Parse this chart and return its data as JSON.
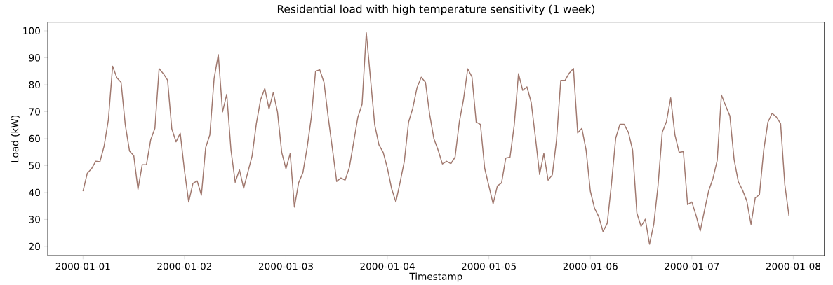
{
  "chart_data": {
    "type": "line",
    "title": "Residential load with high temperature sensitivity (1 week)",
    "xlabel": "Timestamp",
    "ylabel": "Load (kW)",
    "xlim": [
      "1999-12-31T15:39",
      "2000-01-08T07:21"
    ],
    "xticks": [
      "2000-01-01",
      "2000-01-02",
      "2000-01-03",
      "2000-01-04",
      "2000-01-05",
      "2000-01-06",
      "2000-01-07",
      "2000-01-08"
    ],
    "ylim": [
      16.6,
      103.2
    ],
    "yticks": [
      20,
      30,
      40,
      50,
      60,
      70,
      80,
      90,
      100
    ],
    "grid": false,
    "x": [
      "2000-01-01T00:00",
      "2000-01-01T01:00",
      "2000-01-01T02:00",
      "2000-01-01T03:00",
      "2000-01-01T04:00",
      "2000-01-01T05:00",
      "2000-01-01T06:00",
      "2000-01-01T07:00",
      "2000-01-01T08:00",
      "2000-01-01T09:00",
      "2000-01-01T10:00",
      "2000-01-01T11:00",
      "2000-01-01T12:00",
      "2000-01-01T13:00",
      "2000-01-01T14:00",
      "2000-01-01T15:00",
      "2000-01-01T16:00",
      "2000-01-01T17:00",
      "2000-01-01T18:00",
      "2000-01-01T19:00",
      "2000-01-01T20:00",
      "2000-01-01T21:00",
      "2000-01-01T22:00",
      "2000-01-01T23:00",
      "2000-01-02T00:00",
      "2000-01-02T01:00",
      "2000-01-02T02:00",
      "2000-01-02T03:00",
      "2000-01-02T04:00",
      "2000-01-02T05:00",
      "2000-01-02T06:00",
      "2000-01-02T07:00",
      "2000-01-02T08:00",
      "2000-01-02T09:00",
      "2000-01-02T10:00",
      "2000-01-02T11:00",
      "2000-01-02T12:00",
      "2000-01-02T13:00",
      "2000-01-02T14:00",
      "2000-01-02T15:00",
      "2000-01-02T16:00",
      "2000-01-02T17:00",
      "2000-01-02T18:00",
      "2000-01-02T19:00",
      "2000-01-02T20:00",
      "2000-01-02T21:00",
      "2000-01-02T22:00",
      "2000-01-02T23:00",
      "2000-01-03T00:00",
      "2000-01-03T01:00",
      "2000-01-03T02:00",
      "2000-01-03T03:00",
      "2000-01-03T04:00",
      "2000-01-03T05:00",
      "2000-01-03T06:00",
      "2000-01-03T07:00",
      "2000-01-03T08:00",
      "2000-01-03T09:00",
      "2000-01-03T10:00",
      "2000-01-03T11:00",
      "2000-01-03T12:00",
      "2000-01-03T13:00",
      "2000-01-03T14:00",
      "2000-01-03T15:00",
      "2000-01-03T16:00",
      "2000-01-03T17:00",
      "2000-01-03T18:00",
      "2000-01-03T19:00",
      "2000-01-03T20:00",
      "2000-01-03T21:00",
      "2000-01-03T22:00",
      "2000-01-03T23:00",
      "2000-01-04T00:00",
      "2000-01-04T01:00",
      "2000-01-04T02:00",
      "2000-01-04T03:00",
      "2000-01-04T04:00",
      "2000-01-04T05:00",
      "2000-01-04T06:00",
      "2000-01-04T07:00",
      "2000-01-04T08:00",
      "2000-01-04T09:00",
      "2000-01-04T10:00",
      "2000-01-04T11:00",
      "2000-01-04T12:00",
      "2000-01-04T13:00",
      "2000-01-04T14:00",
      "2000-01-04T15:00",
      "2000-01-04T16:00",
      "2000-01-04T17:00",
      "2000-01-04T18:00",
      "2000-01-04T19:00",
      "2000-01-04T20:00",
      "2000-01-04T21:00",
      "2000-01-04T22:00",
      "2000-01-04T23:00",
      "2000-01-05T00:00",
      "2000-01-05T01:00",
      "2000-01-05T02:00",
      "2000-01-05T03:00",
      "2000-01-05T04:00",
      "2000-01-05T05:00",
      "2000-01-05T06:00",
      "2000-01-05T07:00",
      "2000-01-05T08:00",
      "2000-01-05T09:00",
      "2000-01-05T10:00",
      "2000-01-05T11:00",
      "2000-01-05T12:00",
      "2000-01-05T13:00",
      "2000-01-05T14:00",
      "2000-01-05T15:00",
      "2000-01-05T16:00",
      "2000-01-05T17:00",
      "2000-01-05T18:00",
      "2000-01-05T19:00",
      "2000-01-05T20:00",
      "2000-01-05T21:00",
      "2000-01-05T22:00",
      "2000-01-05T23:00",
      "2000-01-06T00:00",
      "2000-01-06T01:00",
      "2000-01-06T02:00",
      "2000-01-06T03:00",
      "2000-01-06T04:00",
      "2000-01-06T05:00",
      "2000-01-06T06:00",
      "2000-01-06T07:00",
      "2000-01-06T08:00",
      "2000-01-06T09:00",
      "2000-01-06T10:00",
      "2000-01-06T11:00",
      "2000-01-06T12:00",
      "2000-01-06T13:00",
      "2000-01-06T14:00",
      "2000-01-06T15:00",
      "2000-01-06T16:00",
      "2000-01-06T17:00",
      "2000-01-06T18:00",
      "2000-01-06T19:00",
      "2000-01-06T20:00",
      "2000-01-06T21:00",
      "2000-01-06T22:00",
      "2000-01-06T23:00",
      "2000-01-07T00:00",
      "2000-01-07T01:00",
      "2000-01-07T02:00",
      "2000-01-07T03:00",
      "2000-01-07T04:00",
      "2000-01-07T05:00",
      "2000-01-07T06:00",
      "2000-01-07T07:00",
      "2000-01-07T08:00",
      "2000-01-07T09:00",
      "2000-01-07T10:00",
      "2000-01-07T11:00",
      "2000-01-07T12:00",
      "2000-01-07T13:00",
      "2000-01-07T14:00",
      "2000-01-07T15:00",
      "2000-01-07T16:00",
      "2000-01-07T17:00",
      "2000-01-07T18:00",
      "2000-01-07T19:00",
      "2000-01-07T20:00",
      "2000-01-07T21:00",
      "2000-01-07T22:00",
      "2000-01-07T23:00"
    ],
    "series": [
      {
        "color": "#a0786e",
        "values": [
          40.5,
          47.1,
          48.8,
          51.6,
          51.4,
          57.3,
          67.0,
          86.9,
          82.6,
          80.9,
          65.1,
          55.4,
          53.7,
          41.2,
          50.3,
          50.3,
          59.5,
          63.8,
          86.0,
          84.1,
          81.7,
          63.6,
          58.8,
          62.0,
          48.1,
          36.5,
          43.4,
          44.3,
          39.0,
          56.6,
          61.4,
          82.2,
          91.2,
          69.9,
          76.5,
          55.7,
          43.8,
          48.4,
          41.6,
          47.6,
          53.6,
          65.6,
          74.4,
          78.6,
          71.0,
          77.1,
          69.9,
          54.9,
          48.8,
          54.5,
          34.6,
          43.6,
          47.3,
          56.6,
          67.9,
          85.0,
          85.5,
          80.9,
          67.9,
          56.1,
          44.1,
          45.4,
          44.6,
          49.3,
          58.5,
          67.9,
          72.7,
          99.3,
          82.2,
          65.1,
          57.7,
          54.9,
          49.0,
          41.4,
          36.5,
          43.8,
          51.6,
          66.1,
          71.3,
          78.9,
          82.8,
          80.9,
          68.9,
          59.9,
          55.7,
          50.6,
          51.6,
          50.7,
          53.1,
          66.1,
          74.6,
          85.9,
          82.9,
          66.1,
          65.3,
          49.0,
          42.4,
          35.8,
          42.4,
          43.6,
          52.8,
          53.1,
          65.1,
          84.1,
          77.9,
          79.2,
          73.5,
          60.5,
          46.7,
          54.5,
          44.6,
          46.5,
          59.5,
          81.6,
          81.6,
          84.3,
          86.0,
          62.1,
          63.8,
          55.7,
          40.5,
          34.1,
          31.0,
          25.5,
          28.6,
          43.3,
          60.2,
          65.3,
          65.3,
          62.3,
          55.7,
          32.4,
          27.4,
          30.1,
          20.8,
          28.2,
          42.4,
          62.3,
          66.3,
          75.1,
          61.4,
          54.9,
          55.2,
          35.5,
          36.5,
          31.5,
          25.7,
          33.4,
          40.7,
          45.2,
          51.9,
          76.2,
          72.2,
          68.4,
          52.3,
          44.0,
          40.9,
          36.9,
          28.2,
          38.0,
          39.2,
          55.6,
          66.1,
          69.4,
          68.0,
          65.6,
          42.9,
          31.2
        ]
      }
    ]
  }
}
